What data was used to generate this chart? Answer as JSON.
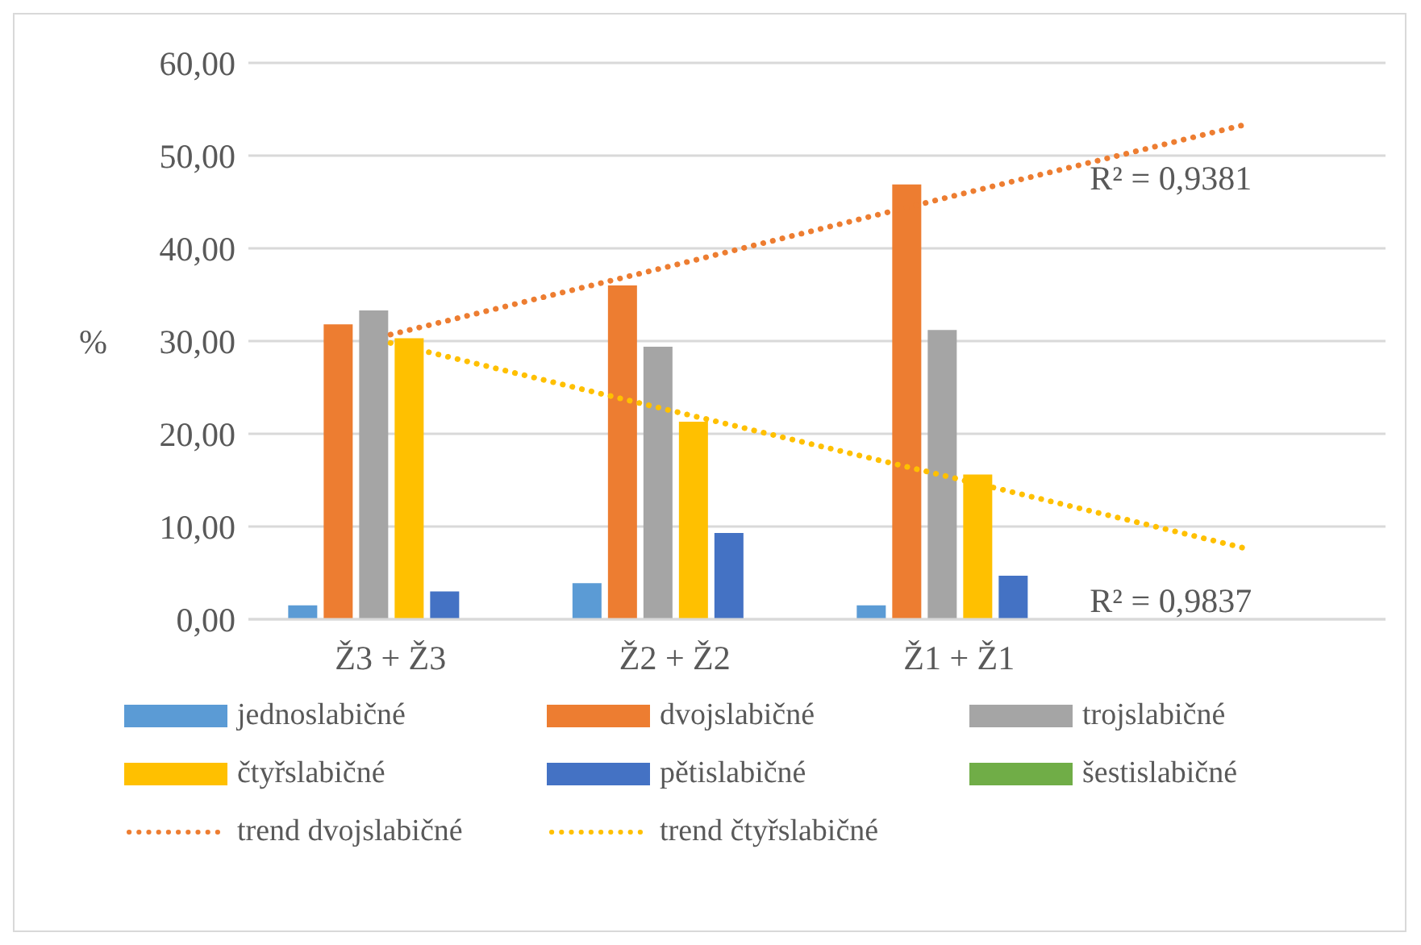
{
  "chart_data": {
    "type": "bar",
    "categories": [
      "Ž3 + Ž3",
      "Ž2 + Ž2",
      "Ž1 + Ž1",
      null
    ],
    "ylabel": "%",
    "ylim": [
      0,
      60
    ],
    "yticks": [
      {
        "value": 0,
        "label": "0,00"
      },
      {
        "value": 10,
        "label": "10,00"
      },
      {
        "value": 20,
        "label": "20,00"
      },
      {
        "value": 30,
        "label": "30,00"
      },
      {
        "value": 40,
        "label": "40,00"
      },
      {
        "value": 50,
        "label": "50,00"
      },
      {
        "value": 60,
        "label": "60,00"
      }
    ],
    "grid": "y",
    "legend": "bottom",
    "series": [
      {
        "name": "jednoslabičné",
        "color": "#5b9bd5",
        "values": [
          1.5,
          3.9,
          1.5,
          null
        ]
      },
      {
        "name": "dvojslabičné",
        "color": "#ed7d31",
        "values": [
          31.8,
          36.0,
          46.9,
          null
        ]
      },
      {
        "name": "trojslabičné",
        "color": "#a5a5a5",
        "values": [
          33.3,
          29.4,
          31.2,
          null
        ]
      },
      {
        "name": "čtyřslabičné",
        "color": "#ffc000",
        "values": [
          30.3,
          21.3,
          15.6,
          null
        ]
      },
      {
        "name": "pětislabičné",
        "color": "#4472c4",
        "values": [
          3.0,
          9.3,
          4.7,
          null
        ]
      },
      {
        "name": "šestislabičné",
        "color": "#70ad47",
        "values": [
          0,
          0,
          0,
          null
        ]
      },
      {
        "name": "trend dvojslabičné",
        "type": "line",
        "line_style": "dotted",
        "color": "#ed7d31",
        "values": [
          30.7,
          38.2,
          45.8,
          53.3
        ]
      },
      {
        "name": "trend čtyřslabičné",
        "type": "line",
        "line_style": "dotted",
        "color": "#ffc000",
        "values": [
          29.8,
          22.4,
          15.1,
          7.7
        ]
      }
    ],
    "annotations": [
      "R² = 0,9381",
      "R² = 0,9837"
    ]
  }
}
